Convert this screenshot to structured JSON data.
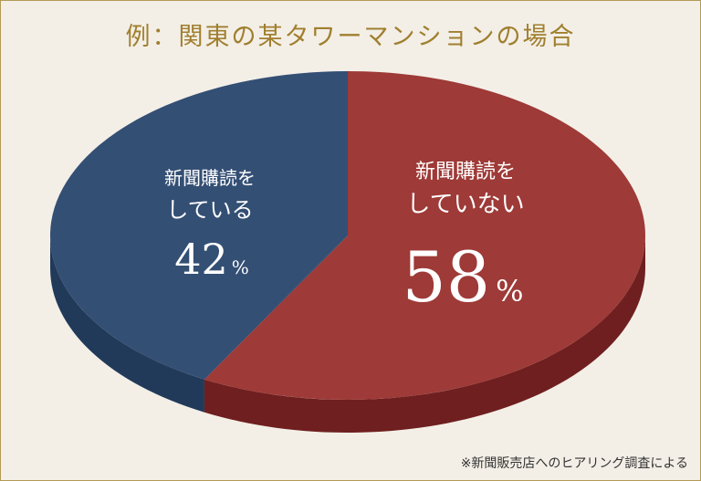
{
  "title": "例：関東の某タワーマンションの場合",
  "source_note": "※新聞販売店へのヒアリング調査による",
  "colors": {
    "subscribe_top": "#9e3a37",
    "subscribe_side": "#6f1f1f",
    "not_subscribe_top": "#344f74",
    "not_subscribe_side": "#213a5a",
    "frame_border": "#b39a55",
    "title": "#a07f2e"
  },
  "chart_data": {
    "type": "pie",
    "title": "例：関東の某タワーマンションの場合",
    "style": "3d",
    "slices": [
      {
        "label_line1": "新聞購読を",
        "label_line2": "していない",
        "value": 58,
        "unit": "%"
      },
      {
        "label_line1": "新聞購読を",
        "label_line2": "している",
        "value": 42,
        "unit": "%"
      }
    ]
  }
}
